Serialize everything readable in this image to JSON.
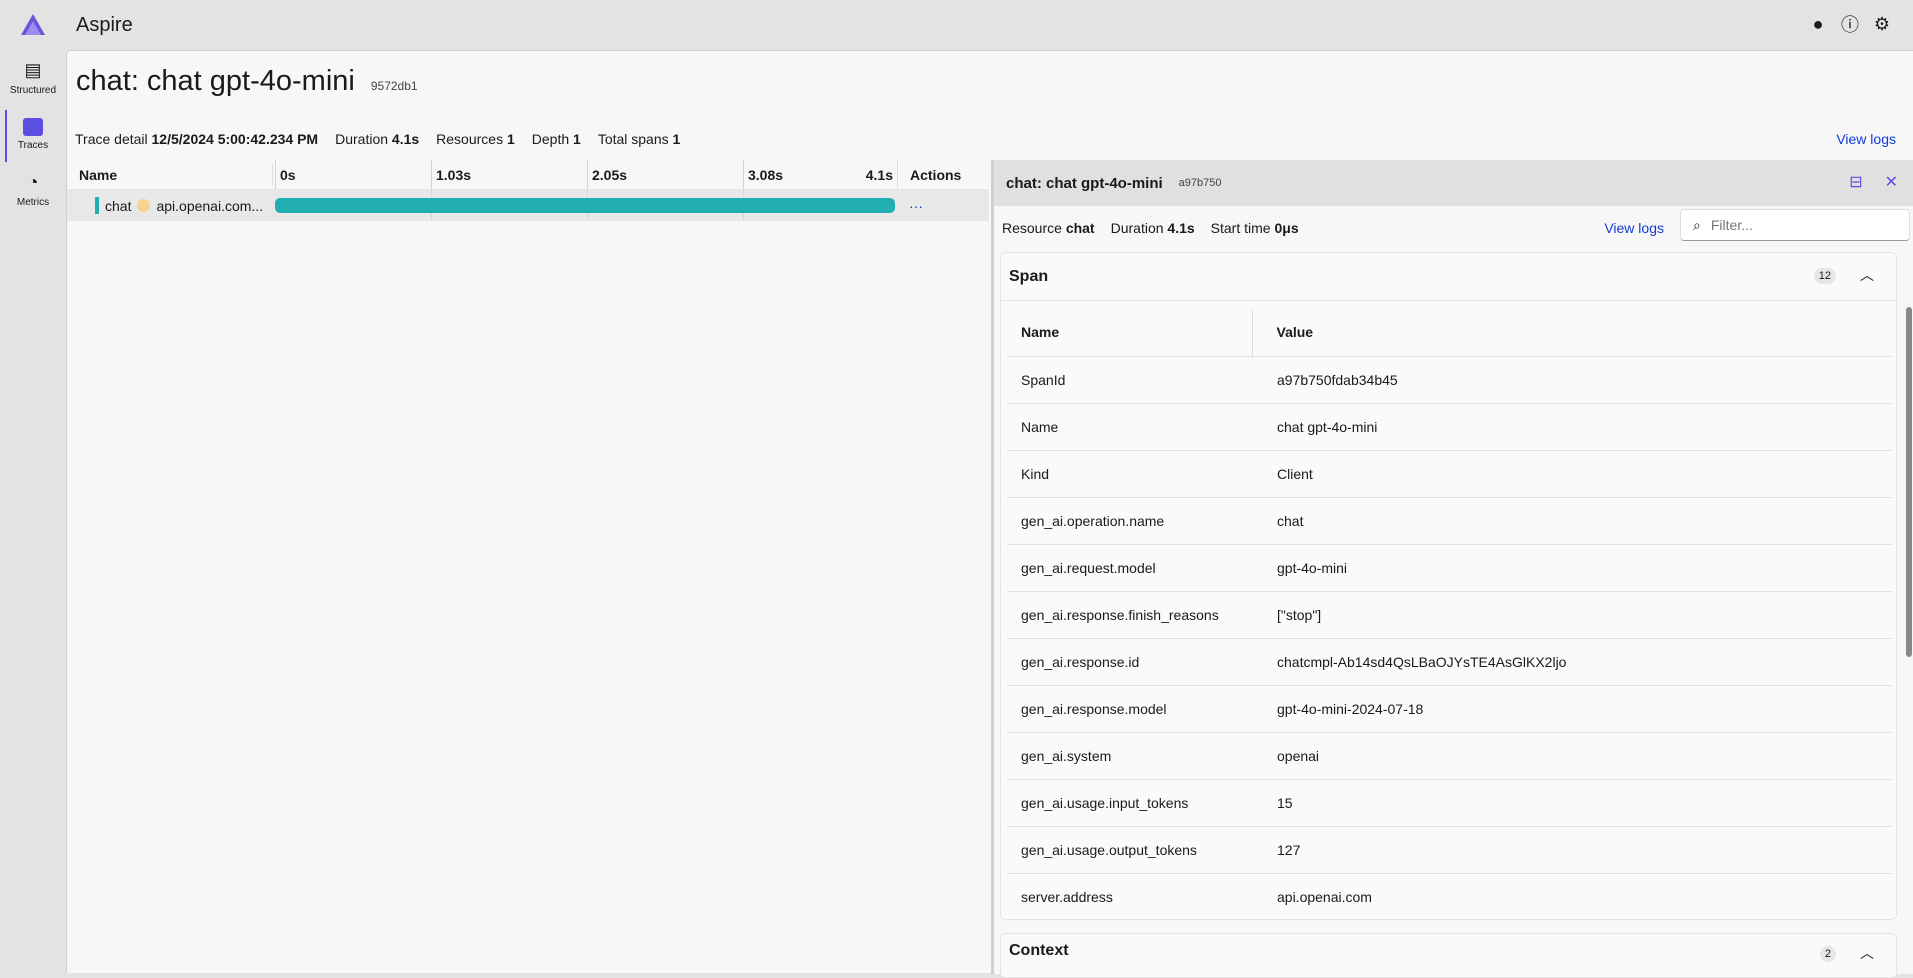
{
  "app": {
    "title": "Aspire"
  },
  "nav": [
    {
      "label": "Structured",
      "icon": "structured-logs-icon"
    },
    {
      "label": "Traces",
      "icon": "traces-icon",
      "active": true
    },
    {
      "label": "Metrics",
      "icon": "metrics-icon"
    }
  ],
  "page": {
    "title": "chat: chat gpt-4o-mini",
    "trace_id": "9572db1",
    "view_logs": "View logs"
  },
  "trace_info": [
    {
      "label": "Trace detail",
      "value": "12/5/2024 5:00:42.234 PM"
    },
    {
      "label": "Duration",
      "value": "4.1s"
    },
    {
      "label": "Resources",
      "value": "1"
    },
    {
      "label": "Depth",
      "value": "1"
    },
    {
      "label": "Total spans",
      "value": "1"
    }
  ],
  "grid": {
    "headers": {
      "name": "Name",
      "actions": "Actions"
    },
    "ticks": [
      "0s",
      "1.03s",
      "2.05s",
      "3.08s",
      "4.1s"
    ],
    "rows": [
      {
        "resource": "chat",
        "target": "api.openai.com...",
        "actions": "···",
        "start_fraction": 0,
        "end_fraction": 1,
        "color": "#20aeb1"
      }
    ]
  },
  "panel": {
    "title": "chat: chat gpt-4o-mini",
    "span_id": "a97b750",
    "info": [
      {
        "label": "Resource",
        "value": "chat"
      },
      {
        "label": "Duration",
        "value": "4.1s"
      },
      {
        "label": "Start time",
        "value": "0μs"
      }
    ],
    "view_logs": "View logs",
    "filter_placeholder": "Filter...",
    "span": {
      "title": "Span",
      "count": "12",
      "headers": {
        "name": "Name",
        "value": "Value"
      },
      "rows": [
        [
          "SpanId",
          "a97b750fdab34b45"
        ],
        [
          "Name",
          "chat gpt-4o-mini"
        ],
        [
          "Kind",
          "Client"
        ],
        [
          "gen_ai.operation.name",
          "chat"
        ],
        [
          "gen_ai.request.model",
          "gpt-4o-mini"
        ],
        [
          "gen_ai.response.finish_reasons",
          "[\"stop\"]"
        ],
        [
          "gen_ai.response.id",
          "chatcmpl-Ab14sd4QsLBaOJYsTE4AsGlKX2ljo"
        ],
        [
          "gen_ai.response.model",
          "gpt-4o-mini-2024-07-18"
        ],
        [
          "gen_ai.system",
          "openai"
        ],
        [
          "gen_ai.usage.input_tokens",
          "15"
        ],
        [
          "gen_ai.usage.output_tokens",
          "127"
        ],
        [
          "server.address",
          "api.openai.com"
        ]
      ]
    },
    "context": {
      "title": "Context",
      "count": "2"
    }
  },
  "colors": {
    "accent": "#5b4ee0",
    "link": "#0f3bd4",
    "bar": "#20aeb1"
  }
}
